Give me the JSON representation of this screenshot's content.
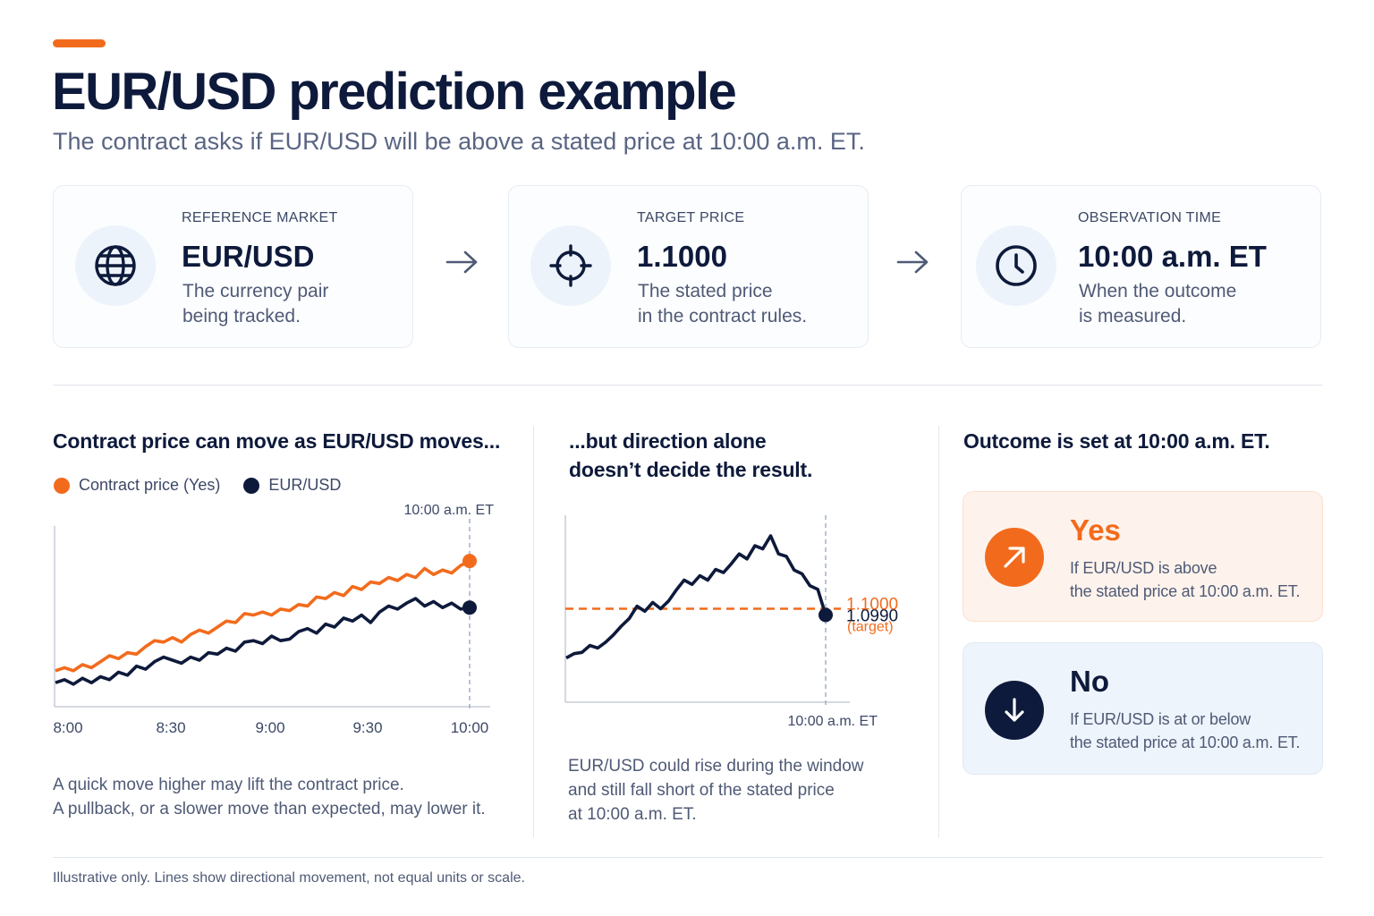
{
  "header": {
    "title": "EUR/USD prediction example",
    "subtitle": "The contract asks if EUR/USD will be above a stated price at 10:00 a.m. ET."
  },
  "cards": [
    {
      "label": "REFERENCE MARKET",
      "value": "EUR/USD",
      "desc1": "The currency pair",
      "desc2": "being tracked.",
      "icon": "globe-icon"
    },
    {
      "label": "TARGET PRICE",
      "value": "1.1000",
      "desc1": "The stated price",
      "desc2": "in the contract rules.",
      "icon": "crosshair-icon"
    },
    {
      "label": "OBSERVATION TIME",
      "value": "10:00 a.m. ET",
      "desc1": "When the outcome",
      "desc2": "is measured.",
      "icon": "clock-icon"
    }
  ],
  "section1": {
    "title": "Contract price can move as EUR/USD moves...",
    "caption1": "A quick move higher may lift the contract price.",
    "caption2": "A pullback, or a slower move than expected, may lower it."
  },
  "section2": {
    "title1": "...but direction alone",
    "title2": "doesn’t decide the result.",
    "caption1": "EUR/USD could rise during the window",
    "caption2": "and still fall short of the stated price",
    "caption3": "at 10:00 a.m. ET."
  },
  "section3": {
    "title": "Outcome is set at 10:00 a.m. ET."
  },
  "outcomes": {
    "yes": {
      "title": "Yes",
      "desc1": "If EUR/USD is above",
      "desc2": "the stated price at 10:00 a.m. ET.",
      "icon": "arrow-up-right-icon"
    },
    "no": {
      "title": "No",
      "desc1": "If EUR/USD is at or below",
      "desc2": "the stated price at 10:00 a.m. ET.",
      "icon": "arrow-down-icon"
    }
  },
  "footnote": "Illustrative only. Lines show directional movement, not equal units or scale.",
  "colors": {
    "orange": "#f26b1d",
    "navy": "#0e1a3b"
  },
  "chart_data": [
    {
      "type": "line",
      "title": "Contract price can move as EUR/USD moves...",
      "xlabel": "",
      "ylabel": "",
      "x_ticks": [
        "8:00",
        "8:30",
        "9:00",
        "9:30",
        "10:00"
      ],
      "marker_label": "10:00 a.m. ET",
      "y_scale": "unlabeled (directional only)",
      "ylim": [
        0,
        100
      ],
      "legend_position": "top-left",
      "series": [
        {
          "name": "Contract price (Yes)",
          "color": "#f26b1d",
          "values": [
            18,
            20,
            18,
            22,
            20,
            24,
            28,
            26,
            30,
            29,
            34,
            38,
            37,
            40,
            37,
            42,
            45,
            43,
            47,
            51,
            50,
            56,
            55,
            57,
            55,
            59,
            58,
            62,
            61,
            67,
            66,
            70,
            68,
            74,
            72,
            77,
            76,
            80,
            78,
            82,
            80,
            86,
            82,
            85,
            83,
            88,
            91
          ]
        },
        {
          "name": "EUR/USD",
          "color": "#0e1a3b",
          "values": [
            10,
            12,
            9,
            13,
            10,
            14,
            12,
            17,
            15,
            21,
            19,
            24,
            27,
            25,
            23,
            27,
            25,
            30,
            29,
            33,
            31,
            37,
            38,
            36,
            41,
            38,
            39,
            44,
            46,
            43,
            49,
            47,
            53,
            51,
            55,
            50,
            57,
            61,
            59,
            63,
            66,
            61,
            64,
            60,
            63,
            59,
            60
          ]
        }
      ]
    },
    {
      "type": "line",
      "title": "...but direction alone doesn’t decide the result.",
      "xlabel": "",
      "ylabel": "",
      "x_ticks": [
        "10:00 a.m. ET"
      ],
      "series": [
        {
          "name": "EUR/USD",
          "color": "#0e1a3b",
          "values": [
            1.0921,
            1.0928,
            1.093,
            1.0941,
            1.0937,
            1.0946,
            1.0958,
            1.0972,
            1.0984,
            1.1004,
            1.0996,
            1.101,
            1.1,
            1.1012,
            1.103,
            1.1046,
            1.1039,
            1.1053,
            1.1046,
            1.1063,
            1.1058,
            1.1072,
            1.1088,
            1.108,
            1.1101,
            1.1096,
            1.1117,
            1.1088,
            1.1084,
            1.1062,
            1.1056,
            1.1037,
            1.1031,
            1.099
          ]
        }
      ],
      "end_label": "1.0990",
      "target": {
        "value": 1.1,
        "label": "1.1000",
        "sublabel": "(target)",
        "color": "#f26b1d"
      },
      "ylim": [
        1.085,
        1.115
      ]
    }
  ]
}
